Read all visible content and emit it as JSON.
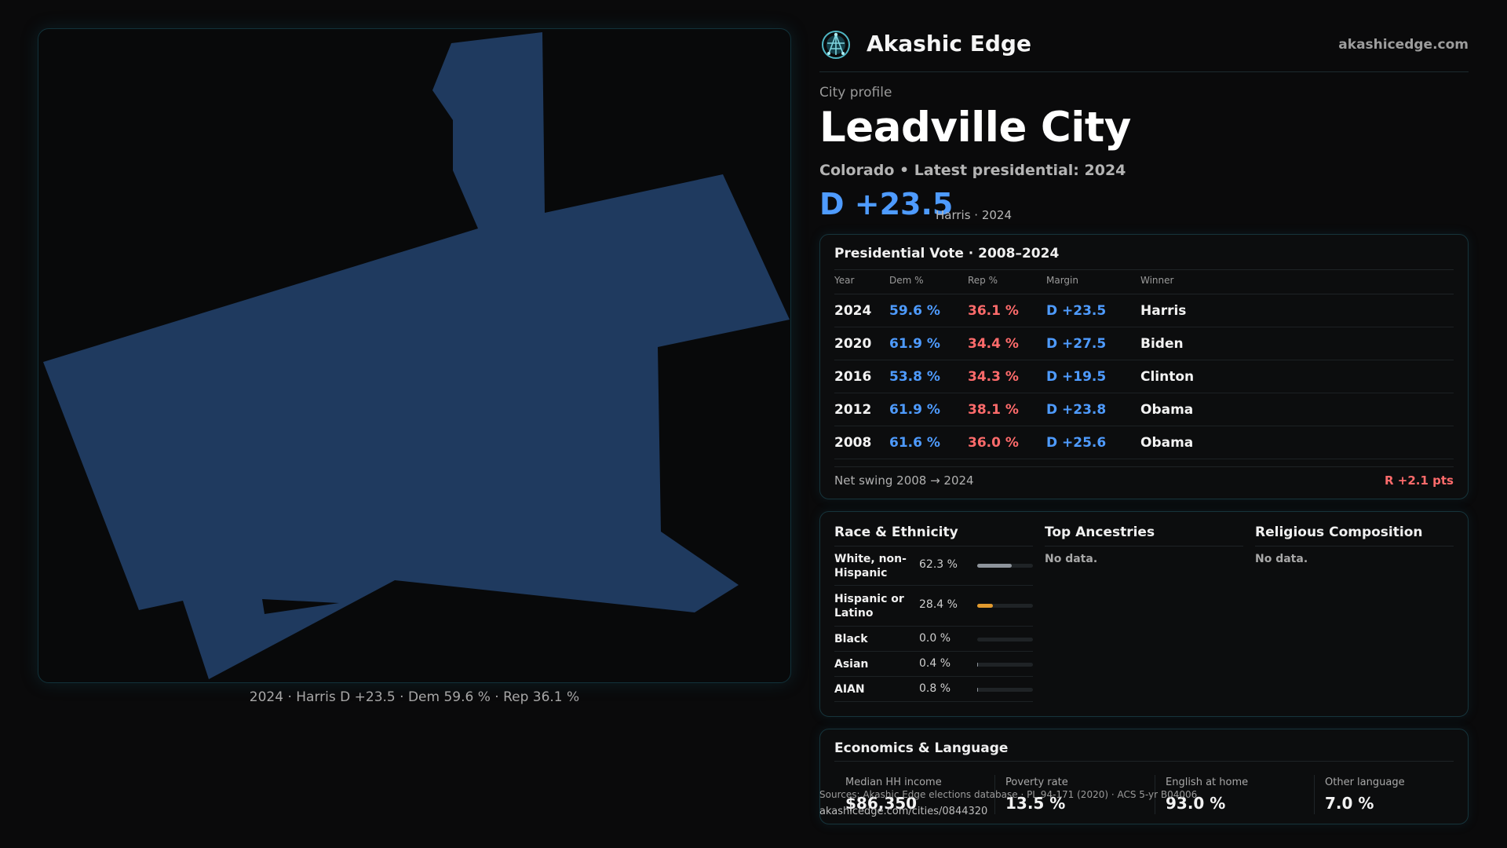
{
  "map": {
    "caption": "2024 · Harris D +23.5 · Dem 59.6 % · Rep 36.1 %",
    "fill_color": "#1f3a5f"
  },
  "brand": {
    "logo_icon": "globe-network-icon",
    "name": "Akashic Edge",
    "url": "akashicedge.com"
  },
  "city": {
    "kicker": "City profile",
    "name": "Leadville City",
    "subtitle": "Colorado • Latest presidential: 2024",
    "margin": "D +23.5",
    "margin_note": "Harris · 2024"
  },
  "vote": {
    "title": "Presidential Vote · 2008–2024",
    "headers": [
      "Year",
      "Dem %",
      "Rep %",
      "Margin",
      "Winner"
    ],
    "rows": [
      {
        "year": "2024",
        "dem": "59.6 %",
        "rep": "36.1 %",
        "margin": "D +23.5",
        "winner": "Harris"
      },
      {
        "year": "2020",
        "dem": "61.9 %",
        "rep": "34.4 %",
        "margin": "D +27.5",
        "winner": "Biden"
      },
      {
        "year": "2016",
        "dem": "53.8 %",
        "rep": "34.3 %",
        "margin": "D +19.5",
        "winner": "Clinton"
      },
      {
        "year": "2012",
        "dem": "61.9 %",
        "rep": "38.1 %",
        "margin": "D +23.8",
        "winner": "Obama"
      },
      {
        "year": "2008",
        "dem": "61.6 %",
        "rep": "36.0 %",
        "margin": "D +25.6",
        "winner": "Obama"
      }
    ],
    "swing_label": "Net swing 2008 → 2024",
    "swing_value": "R +2.1 pts",
    "colors": {
      "dem": "#4e9bff",
      "rep": "#ff6b6b"
    }
  },
  "demographics": {
    "race_title": "Race & Ethnicity",
    "race": [
      {
        "label": "White, non-Hispanic",
        "pct": "62.3 %",
        "share": 0.623,
        "color": "#8e949b"
      },
      {
        "label": "Hispanic or Latino",
        "pct": "28.4 %",
        "share": 0.284,
        "color": "#e29a2e"
      },
      {
        "label": "Black",
        "pct": "0.0 %",
        "share": 0.0,
        "color": "#8e949b"
      },
      {
        "label": "Asian",
        "pct": "0.4 %",
        "share": 0.004,
        "color": "#8e949b"
      },
      {
        "label": "AIAN",
        "pct": "0.8 %",
        "share": 0.008,
        "color": "#8e949b"
      }
    ],
    "ancestry_title": "Top Ancestries",
    "ancestry_empty": "No data.",
    "religion_title": "Religious Composition",
    "religion_empty": "No data."
  },
  "economics": {
    "title": "Economics & Language",
    "stats": [
      {
        "label": "Median HH income",
        "value": "$86,350"
      },
      {
        "label": "Poverty rate",
        "value": "13.5 %"
      },
      {
        "label": "English at home",
        "value": "93.0 %"
      },
      {
        "label": "Other language",
        "value": "7.0 %"
      }
    ]
  },
  "footer": {
    "source": "Sources: Akashic Edge elections database · PL 94-171 (2020) · ACS 5-yr B04006",
    "url": "akashicedge.com/cities/0844320"
  }
}
